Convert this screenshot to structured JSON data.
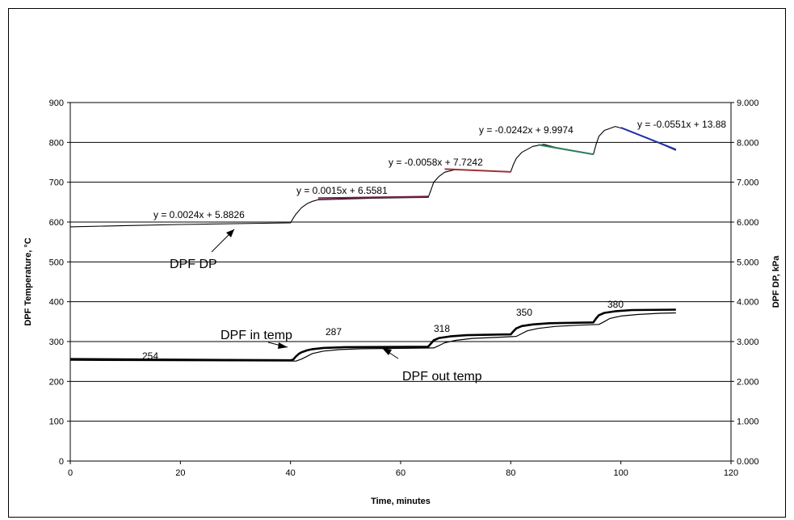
{
  "chart_data": {
    "type": "line",
    "title": "",
    "xlabel": "Time, minutes",
    "ylabel_left": "DPF Temperature, °C",
    "ylabel_right": "DPF DP, kPa",
    "xlim": [
      0,
      120
    ],
    "ylim_left": [
      0,
      900
    ],
    "ylim_right": [
      0,
      9
    ],
    "grid": true,
    "x_ticks": [
      "0",
      "20",
      "40",
      "60",
      "80",
      "100",
      "120"
    ],
    "y_left_ticks": [
      "0",
      "100",
      "200",
      "300",
      "400",
      "500",
      "600",
      "700",
      "800",
      "900"
    ],
    "y_right_ticks": [
      "0.000",
      "1.000",
      "2.000",
      "3.000",
      "4.000",
      "5.000",
      "6.000",
      "7.000",
      "8.000",
      "9.000"
    ],
    "series": [
      {
        "name": "DPF in temp",
        "axis": "left",
        "color": "#000000",
        "points": [
          [
            0,
            256
          ],
          [
            40,
            253
          ],
          [
            40.5,
            255
          ],
          [
            41,
            263
          ],
          [
            41.5,
            269
          ],
          [
            42,
            273
          ],
          [
            43,
            278
          ],
          [
            44,
            281
          ],
          [
            46,
            284
          ],
          [
            50,
            286
          ],
          [
            65,
            287
          ],
          [
            65.5,
            295
          ],
          [
            66,
            303
          ],
          [
            67,
            309
          ],
          [
            69,
            313
          ],
          [
            72,
            316
          ],
          [
            80,
            318
          ],
          [
            80.5,
            326
          ],
          [
            81,
            333
          ],
          [
            82,
            339
          ],
          [
            84,
            343
          ],
          [
            87,
            346
          ],
          [
            95,
            348
          ],
          [
            95.5,
            358
          ],
          [
            96,
            366
          ],
          [
            97,
            372
          ],
          [
            99,
            376
          ],
          [
            102,
            379
          ],
          [
            110,
            380
          ]
        ]
      },
      {
        "name": "DPF out temp",
        "axis": "left",
        "color": "#000000",
        "points": [
          [
            0,
            253
          ],
          [
            41,
            251
          ],
          [
            42,
            256
          ],
          [
            43,
            263
          ],
          [
            44,
            270
          ],
          [
            46,
            276
          ],
          [
            49,
            280
          ],
          [
            53,
            282
          ],
          [
            66,
            284
          ],
          [
            67,
            290
          ],
          [
            68,
            297
          ],
          [
            70,
            303
          ],
          [
            73,
            308
          ],
          [
            78,
            311
          ],
          [
            81,
            313
          ],
          [
            82,
            320
          ],
          [
            83,
            327
          ],
          [
            85,
            333
          ],
          [
            88,
            338
          ],
          [
            92,
            341
          ],
          [
            96,
            343
          ],
          [
            97,
            350
          ],
          [
            98,
            358
          ],
          [
            100,
            364
          ],
          [
            103,
            368
          ],
          [
            107,
            371
          ],
          [
            110,
            372
          ]
        ]
      },
      {
        "name": "DPF DP",
        "axis": "right",
        "color": "#000000",
        "points": [
          [
            0,
            5.88
          ],
          [
            10,
            5.91
          ],
          [
            20,
            5.94
          ],
          [
            30,
            5.96
          ],
          [
            40,
            5.98
          ],
          [
            40.5,
            6.1
          ],
          [
            41,
            6.2
          ],
          [
            42,
            6.36
          ],
          [
            43,
            6.46
          ],
          [
            44,
            6.52
          ],
          [
            45,
            6.56
          ],
          [
            55,
            6.6
          ],
          [
            65,
            6.62
          ],
          [
            65.5,
            6.8
          ],
          [
            66,
            7
          ],
          [
            67,
            7.15
          ],
          [
            68,
            7.25
          ],
          [
            70,
            7.32
          ],
          [
            75,
            7.29
          ],
          [
            80,
            7.26
          ],
          [
            80.5,
            7.45
          ],
          [
            81,
            7.6
          ],
          [
            82,
            7.75
          ],
          [
            84,
            7.9
          ],
          [
            86,
            7.95
          ],
          [
            88,
            7.88
          ],
          [
            92,
            7.77
          ],
          [
            95,
            7.7
          ],
          [
            95.5,
            7.95
          ],
          [
            96,
            8.15
          ],
          [
            97,
            8.3
          ],
          [
            99,
            8.4
          ],
          [
            101,
            8.32
          ],
          [
            105,
            8.1
          ],
          [
            110,
            7.8
          ]
        ]
      }
    ],
    "fit_segments": [
      {
        "color": "#7a1f4a",
        "x": [
          45,
          65
        ],
        "y": [
          6.6,
          6.64
        ]
      },
      {
        "color": "#a0303a",
        "x": [
          68,
          80
        ],
        "y": [
          7.33,
          7.26
        ]
      },
      {
        "color": "#2e7d5a",
        "x": [
          85,
          95
        ],
        "y": [
          7.94,
          7.7
        ]
      },
      {
        "color": "#2330a8",
        "x": [
          100,
          110
        ],
        "y": [
          8.37,
          7.82
        ]
      }
    ],
    "annotations": {
      "dp_label": "DPF DP",
      "in_label": "DPF in temp",
      "out_label": "DPF out temp",
      "value_labels": [
        "254",
        "287",
        "318",
        "350",
        "380"
      ],
      "equations": [
        "y = 0.0024x + 5.8826",
        "y = 0.0015x + 6.5581",
        "y = -0.0058x + 7.7242",
        "y = -0.0242x + 9.9974",
        "y = -0.0551x + 13.88"
      ]
    }
  }
}
